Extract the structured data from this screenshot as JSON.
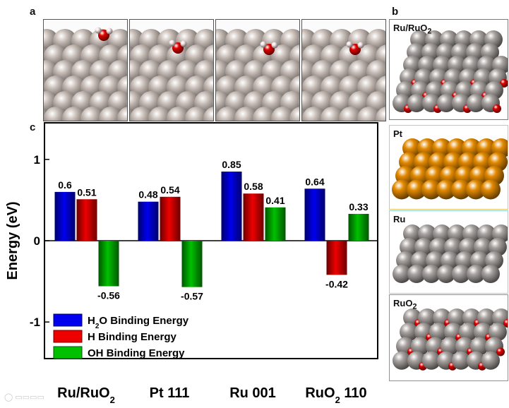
{
  "panel_labels": {
    "a": "a",
    "b": "b",
    "c": "c"
  },
  "top_thumbnails": [
    {
      "name": "thumb-ru-ruo2"
    },
    {
      "name": "thumb-pt111"
    },
    {
      "name": "thumb-ru001"
    },
    {
      "name": "thumb-ruo2-110"
    }
  ],
  "side_panels": [
    {
      "label_main": "Ru/RuO",
      "label_sub": "2",
      "border": "#d9534f",
      "style": "mixed"
    },
    {
      "label_main": "Pt",
      "label_sub": "",
      "border": "#e8c468",
      "style": "pt"
    },
    {
      "label_main": "Ru",
      "label_sub": "",
      "border": "#8fd3e8",
      "style": "ru"
    },
    {
      "label_main": "RuO",
      "label_sub": "2",
      "border": "#9b7fc7",
      "style": "ruo2"
    }
  ],
  "colors": {
    "h2o": "#0000ee",
    "h": "#ee0000",
    "oh": "#00c000",
    "ru": "#9a9592",
    "o": "#dd0000",
    "pt": "#e38a00"
  },
  "chart_data": {
    "type": "bar",
    "ylabel": "Energy (eV)",
    "ylim": [
      -1.45,
      1.45
    ],
    "yticks": [
      -1,
      0,
      1
    ],
    "categories": [
      {
        "main": "Ru/RuO",
        "sub": "2",
        "tail": ""
      },
      {
        "main": "Pt 111",
        "sub": "",
        "tail": ""
      },
      {
        "main": "Ru 001",
        "sub": "",
        "tail": ""
      },
      {
        "main": "RuO",
        "sub": "2",
        "tail": " 110"
      }
    ],
    "series": [
      {
        "name_main": "H",
        "name_sub": "2",
        "name_tail": "O Binding Energy",
        "color": "#0000ee",
        "values": [
          0.6,
          0.48,
          0.85,
          0.64
        ],
        "labels": [
          "0.6",
          "0.48",
          "0.85",
          "0.64"
        ]
      },
      {
        "name_main": "H Binding Energy",
        "name_sub": "",
        "name_tail": "",
        "color": "#ee0000",
        "values": [
          0.51,
          0.54,
          0.58,
          -0.42
        ],
        "labels": [
          "0.51",
          "0.54",
          "0.58",
          "-0.42"
        ]
      },
      {
        "name_main": "OH Binding Energy",
        "name_sub": "",
        "name_tail": "",
        "color": "#00c000",
        "values": [
          -0.56,
          -0.57,
          0.41,
          0.33
        ],
        "labels": [
          "-0.56",
          "-0.57",
          "0.41",
          "0.33"
        ]
      }
    ],
    "grid": false,
    "legend_position": "bottom-left"
  }
}
